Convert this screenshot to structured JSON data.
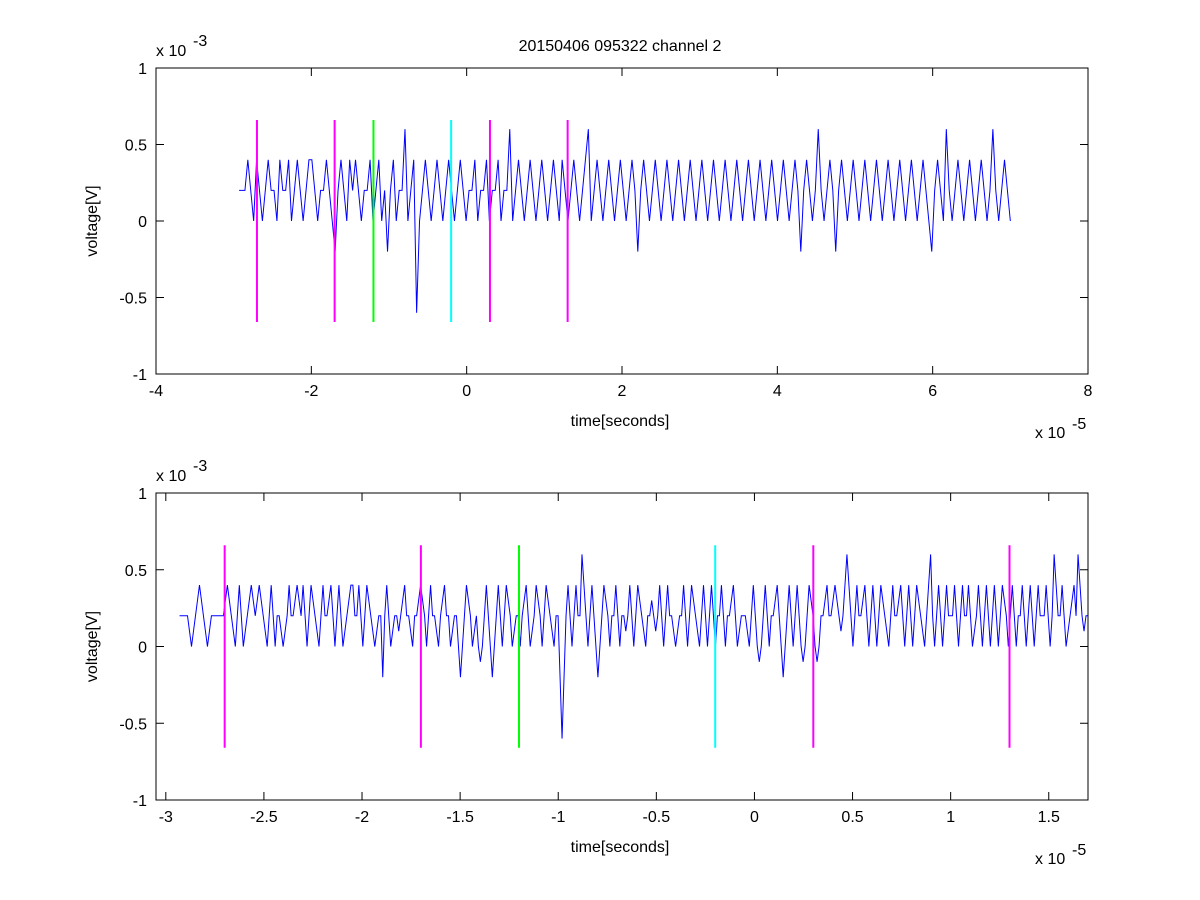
{
  "figure_title": "20150406 095322 channel 2",
  "chart_data": [
    {
      "type": "line",
      "title": "20150406 095322 channel 2",
      "xlabel": "time[seconds]",
      "ylabel": "voltage[V]",
      "xlim": [
        -4,
        8
      ],
      "ylim": [
        -1,
        1
      ],
      "x_multiplier_label": "x 10",
      "x_multiplier_exp": "-5",
      "y_multiplier_label": "x 10",
      "y_multiplier_exp": "-3",
      "xticks": [
        -4,
        -2,
        0,
        2,
        4,
        6,
        8
      ],
      "xtick_labels": [
        "-4",
        "-2",
        "0",
        "2",
        "4",
        "6",
        "8"
      ],
      "yticks": [
        -1,
        -0.5,
        0,
        0.5,
        1
      ],
      "ytick_labels": [
        "-1",
        "-0.5",
        "0",
        "0.5",
        "1"
      ],
      "grid": false,
      "series": [
        {
          "color": "#0000ff",
          "x_start": -2.93,
          "x_end": 7.0,
          "values": [
            0.2,
            0.2,
            0.2,
            0.4,
            0.2,
            0.0,
            0.4,
            0.2,
            0.0,
            0.2,
            0.4,
            0.2,
            0.2,
            0.0,
            0.4,
            0.2,
            0.2,
            0.4,
            0.0,
            0.2,
            0.4,
            0.2,
            0.0,
            0.2,
            0.4,
            0.4,
            0.2,
            0.0,
            0.2,
            0.2,
            0.4,
            0.2,
            0.0,
            -0.2,
            0.2,
            0.4,
            0.2,
            0.0,
            0.4,
            0.2,
            0.4,
            0.2,
            0.0,
            0.2,
            0.2,
            0.4,
            0.0,
            0.2,
            0.4,
            0.0,
            0.2,
            -0.2,
            0.2,
            0.4,
            0.0,
            0.2,
            0.2,
            0.6,
            0.0,
            0.2,
            0.4,
            -0.6,
            0.0,
            0.2,
            0.4,
            0.2,
            0.0,
            0.2,
            0.4,
            0.2,
            0.0,
            0.2,
            0.4,
            0.2,
            0.0,
            0.2,
            0.4,
            0.2,
            0.0,
            0.2,
            0.2,
            0.4,
            0.0,
            0.2,
            0.2,
            0.4,
            0.0,
            0.2,
            0.2,
            0.4,
            0.0,
            0.2,
            0.2,
            0.6,
            0.0,
            0.2,
            0.4,
            0.2,
            0.0,
            0.2,
            0.4,
            0.2,
            0.0,
            0.2,
            0.4,
            0.2,
            0.0,
            0.2,
            0.4,
            0.2,
            0.0,
            0.4,
            0.2,
            0.0,
            0.2,
            0.4,
            0.2,
            0.0,
            0.2,
            0.4,
            0.6,
            0.0,
            0.2,
            0.4,
            0.2,
            0.0,
            0.2,
            0.4,
            0.2,
            0.0,
            0.2,
            0.4,
            0.2,
            0.0,
            0.2,
            0.4,
            0.2,
            -0.2,
            0.2,
            0.4,
            0.2,
            0.0,
            0.2,
            0.4,
            0.2,
            0.0,
            0.2,
            0.4,
            0.2,
            0.0,
            0.2,
            0.4,
            0.2,
            0.0,
            0.2,
            0.4,
            0.2,
            0.0,
            0.2,
            0.4,
            0.2,
            0.0,
            0.2,
            0.4,
            0.2,
            0.0,
            0.2,
            0.4,
            0.2,
            0.0,
            0.2,
            0.4,
            0.2,
            0.0,
            0.2,
            0.4,
            0.2,
            0.0,
            0.2,
            0.4,
            0.2,
            0.0,
            0.2,
            0.4,
            0.2,
            0.0,
            0.2,
            0.4,
            0.2,
            0.0,
            0.2,
            0.4,
            0.2,
            -0.2,
            0.2,
            0.4,
            0.2,
            0.0,
            0.2,
            0.6,
            0.2,
            0.0,
            0.2,
            0.4,
            0.2,
            -0.2,
            0.2,
            0.4,
            0.2,
            0.0,
            0.2,
            0.4,
            0.2,
            0.0,
            0.2,
            0.4,
            0.2,
            0.0,
            0.2,
            0.4,
            0.2,
            0.0,
            0.2,
            0.4,
            0.2,
            0.0,
            0.2,
            0.4,
            0.2,
            0.0,
            0.2,
            0.4,
            0.2,
            0.0,
            0.2,
            0.4,
            0.2,
            0.0,
            -0.2,
            0.2,
            0.4,
            0.2,
            0.0,
            0.6,
            0.2,
            0.0,
            0.2,
            0.4,
            0.2,
            0.0,
            0.2,
            0.4,
            0.2,
            0.0,
            0.2,
            0.4,
            0.2,
            0.0,
            0.2,
            0.6,
            0.2,
            0.0,
            0.2,
            0.4,
            0.2,
            0.0
          ]
        }
      ],
      "vertical_markers": [
        {
          "x": -2.7,
          "y_top": 0.66,
          "y_bottom": -0.66,
          "color": "#ff00ff"
        },
        {
          "x": -1.7,
          "y_top": 0.66,
          "y_bottom": -0.66,
          "color": "#ff00ff"
        },
        {
          "x": -1.2,
          "y_top": 0.66,
          "y_bottom": -0.66,
          "color": "#00ff00"
        },
        {
          "x": -0.2,
          "y_top": 0.66,
          "y_bottom": -0.66,
          "color": "#00ffff"
        },
        {
          "x": 0.3,
          "y_top": 0.66,
          "y_bottom": -0.66,
          "color": "#ff00ff"
        },
        {
          "x": 1.3,
          "y_top": 0.66,
          "y_bottom": -0.66,
          "color": "#ff00ff"
        }
      ]
    },
    {
      "type": "line",
      "title": "",
      "xlabel": "time[seconds]",
      "ylabel": "voltage[V]",
      "xlim": [
        -3.05,
        1.7
      ],
      "ylim": [
        -1,
        1
      ],
      "x_multiplier_label": "x 10",
      "x_multiplier_exp": "-5",
      "y_multiplier_label": "x 10",
      "y_multiplier_exp": "-3",
      "xticks": [
        -3,
        -2.5,
        -2,
        -1.5,
        -1,
        -0.5,
        0,
        0.5,
        1,
        1.5
      ],
      "xtick_labels": [
        "-3",
        "-2.5",
        "-2",
        "-1.5",
        "-1",
        "-0.5",
        "0",
        "0.5",
        "1",
        "1.5"
      ],
      "yticks": [
        -1,
        -0.5,
        0,
        0.5,
        1
      ],
      "ytick_labels": [
        "-1",
        "-0.5",
        "0",
        "0.5",
        "1"
      ],
      "grid": false,
      "series": [
        {
          "color": "#0000ff",
          "x_start": -2.93,
          "x_end": 1.7,
          "values": [
            0.2,
            0.2,
            0.2,
            0.2,
            0.2,
            0.1,
            0.0,
            0.1,
            0.2,
            0.3,
            0.4,
            0.3,
            0.2,
            0.1,
            0.0,
            0.1,
            0.2,
            0.2,
            0.2,
            0.2,
            0.2,
            0.2,
            0.2,
            0.3,
            0.4,
            0.3,
            0.2,
            0.1,
            0.0,
            0.2,
            0.4,
            0.2,
            0.0,
            0.1,
            0.2,
            0.3,
            0.4,
            0.3,
            0.2,
            0.3,
            0.4,
            0.3,
            0.2,
            0.1,
            0.0,
            0.2,
            0.4,
            0.2,
            0.0,
            0.2,
            0.2,
            0.1,
            0.0,
            0.1,
            0.2,
            0.4,
            0.2,
            0.2,
            0.3,
            0.4,
            0.3,
            0.2,
            0.4,
            0.2,
            0.0,
            0.2,
            0.4,
            0.3,
            0.2,
            0.1,
            0.0,
            0.2,
            0.4,
            0.2,
            0.2,
            0.3,
            0.4,
            0.2,
            0.0,
            0.2,
            0.4,
            0.2,
            0.0,
            0.1,
            0.2,
            0.3,
            0.4,
            0.4,
            0.2,
            0.2,
            0.4,
            0.2,
            0.0,
            0.2,
            0.4,
            0.3,
            0.2,
            0.1,
            0.0,
            0.1,
            0.2,
            0.2,
            -0.2,
            0.2,
            0.4,
            0.2,
            0.0,
            0.1,
            0.2,
            0.2,
            0.1,
            0.2,
            0.3,
            0.4,
            0.2,
            0.2,
            0.1,
            0.0,
            0.2,
            0.2,
            0.3,
            0.4,
            0.3,
            0.2,
            0.0,
            0.2,
            0.4,
            0.2,
            0.2,
            0.1,
            0.0,
            0.2,
            0.3,
            0.4,
            0.2,
            0.2,
            0.0,
            0.1,
            0.2,
            0.2,
            0.0,
            -0.2,
            0.0,
            0.2,
            0.4,
            0.3,
            0.2,
            0.0,
            0.1,
            0.2,
            0.0,
            -0.1,
            0.0,
            0.2,
            0.4,
            0.2,
            0.0,
            -0.2,
            0.0,
            0.2,
            0.4,
            0.2,
            0.0,
            0.2,
            0.4,
            0.3,
            0.2,
            0.0,
            0.1,
            0.2,
            0.2,
            0.0,
            0.2,
            0.3,
            0.4,
            0.2,
            0.0,
            0.1,
            0.2,
            0.4,
            0.3,
            0.2,
            0.0,
            0.2,
            0.4,
            0.3,
            0.2,
            0.1,
            0.0,
            0.2,
            0.2,
            -0.2,
            -0.6,
            -0.2,
            0.2,
            0.4,
            0.2,
            0.0,
            0.2,
            0.4,
            0.2,
            0.2,
            0.6,
            0.4,
            0.2,
            0.0,
            0.2,
            0.4,
            0.2,
            0.0,
            -0.2,
            0.0,
            0.2,
            0.4,
            0.3,
            0.2,
            0.0,
            0.2,
            0.2,
            0.4,
            0.2,
            0.0,
            0.2,
            0.2,
            0.1,
            0.2,
            0.4,
            0.2,
            0.0,
            0.2,
            0.4,
            0.3,
            0.2,
            0.1,
            0.0,
            0.2,
            0.2,
            0.3,
            0.2,
            0.1,
            0.2,
            0.4,
            0.2,
            0.0,
            0.2,
            0.4,
            0.2,
            0.2,
            0.1,
            0.0,
            0.1,
            0.2,
            0.2,
            0.4,
            0.2,
            0.0,
            0.2,
            0.4,
            0.3,
            0.2,
            0.1,
            0.0,
            0.2,
            0.4,
            0.2,
            0.0,
            0.2,
            0.4,
            0.2,
            0.0,
            0.2,
            0.2,
            0.4,
            0.2,
            0.0,
            0.2,
            0.2,
            0.3,
            0.4,
            0.2,
            0.0,
            0.1,
            0.2,
            0.2,
            0.2,
            0.1,
            0.0,
            0.2,
            0.4,
            0.2,
            0.0,
            -0.1,
            0.0,
            0.2,
            0.4,
            0.2,
            0.0,
            0.2,
            0.2,
            0.3,
            0.4,
            0.2,
            0.0,
            -0.2,
            0.0,
            0.2,
            0.4,
            0.2,
            0.0,
            0.2,
            0.4,
            0.2,
            0.0,
            -0.1,
            0.0,
            0.2,
            0.4,
            0.3,
            0.2,
            0.0,
            -0.1,
            0.0,
            0.2,
            0.2,
            0.3,
            0.4,
            0.2,
            0.2,
            0.3,
            0.4,
            0.3,
            0.2,
            0.1,
            0.2,
            0.4,
            0.6,
            0.4,
            0.2,
            0.0,
            0.2,
            0.4,
            0.2,
            0.2,
            0.3,
            0.4,
            0.2,
            0.0,
            0.2,
            0.4,
            0.2,
            0.0,
            0.2,
            0.4,
            0.3,
            0.2,
            0.1,
            0.0,
            0.2,
            0.4,
            0.2,
            0.2,
            0.3,
            0.4,
            0.2,
            0.0,
            0.2,
            0.4,
            0.2,
            0.0,
            0.2,
            0.4,
            0.3,
            0.2,
            0.1,
            0.0,
            0.2,
            0.4,
            0.6,
            0.2,
            0.0,
            0.2,
            0.4,
            0.2,
            0.0,
            0.2,
            0.4,
            0.2,
            0.2,
            0.2,
            0.4,
            0.2,
            0.0,
            0.2,
            0.4,
            0.2,
            0.2,
            0.4,
            0.2,
            0.0,
            0.1,
            0.2,
            0.4,
            0.2,
            0.0,
            0.2,
            0.4,
            0.2,
            0.0,
            0.2,
            0.4,
            0.2,
            0.0,
            0.2,
            0.4,
            0.3,
            0.2,
            0.0,
            0.2,
            0.4,
            0.2,
            0.0,
            0.2,
            0.2,
            0.4,
            0.2,
            0.0,
            0.2,
            0.4,
            0.2,
            0.0,
            0.2,
            0.4,
            0.2,
            0.2,
            0.2,
            0.4,
            0.2,
            0.0,
            0.2,
            0.6,
            0.4,
            0.2,
            0.2,
            0.4,
            0.2,
            0.0,
            0.1,
            0.2,
            0.3,
            0.4,
            0.2,
            0.6,
            0.4,
            0.2,
            0.1,
            0.2,
            0.2
          ]
        }
      ],
      "vertical_markers": [
        {
          "x": -2.7,
          "y_top": 0.66,
          "y_bottom": -0.66,
          "color": "#ff00ff"
        },
        {
          "x": -1.7,
          "y_top": 0.66,
          "y_bottom": -0.66,
          "color": "#ff00ff"
        },
        {
          "x": -1.2,
          "y_top": 0.66,
          "y_bottom": -0.66,
          "color": "#00ff00"
        },
        {
          "x": -0.2,
          "y_top": 0.66,
          "y_bottom": -0.66,
          "color": "#00ffff"
        },
        {
          "x": 0.3,
          "y_top": 0.66,
          "y_bottom": -0.66,
          "color": "#ff00ff"
        },
        {
          "x": 1.3,
          "y_top": 0.66,
          "y_bottom": -0.66,
          "color": "#ff00ff"
        }
      ]
    }
  ]
}
